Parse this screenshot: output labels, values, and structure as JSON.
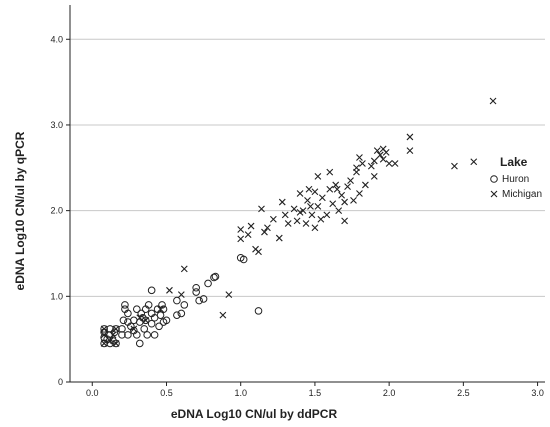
{
  "chart_data": {
    "type": "scatter",
    "title": "",
    "xlabel": "eDNA Log10 CN/ul by ddPCR",
    "ylabel": "eDNA Log10 CN/ul by qPCR",
    "xlim": [
      -0.15,
      3.05
    ],
    "ylim": [
      0,
      4.4
    ],
    "x_ticks": [
      "0.0",
      "0.5",
      "1.0",
      "1.5",
      "2.0",
      "2.5",
      "3.0"
    ],
    "y_ticks": [
      "0",
      "1.0",
      "2.0",
      "3.0",
      "4.0"
    ],
    "y_tick_values": [
      0,
      1,
      2,
      3,
      4
    ],
    "x_tick_values": [
      0,
      0.5,
      1,
      1.5,
      2,
      2.5,
      3
    ],
    "grid": "horizontal",
    "legend_position": "right",
    "legend_title": "Lake",
    "colors": {
      "marker": "#222222",
      "grid": "#c8c8c8",
      "axis": "#222222"
    },
    "series": [
      {
        "name": "Huron",
        "marker": "circle",
        "points": [
          [
            0.08,
            0.45
          ],
          [
            0.08,
            0.52
          ],
          [
            0.08,
            0.58
          ],
          [
            0.08,
            0.62
          ],
          [
            0.1,
            0.5
          ],
          [
            0.12,
            0.45
          ],
          [
            0.12,
            0.55
          ],
          [
            0.12,
            0.62
          ],
          [
            0.14,
            0.48
          ],
          [
            0.15,
            0.58
          ],
          [
            0.16,
            0.45
          ],
          [
            0.16,
            0.62
          ],
          [
            0.2,
            0.55
          ],
          [
            0.2,
            0.62
          ],
          [
            0.21,
            0.72
          ],
          [
            0.22,
            0.85
          ],
          [
            0.22,
            0.9
          ],
          [
            0.24,
            0.7
          ],
          [
            0.24,
            0.8
          ],
          [
            0.24,
            0.55
          ],
          [
            0.26,
            0.65
          ],
          [
            0.28,
            0.6
          ],
          [
            0.28,
            0.72
          ],
          [
            0.3,
            0.55
          ],
          [
            0.3,
            0.85
          ],
          [
            0.32,
            0.7
          ],
          [
            0.32,
            0.45
          ],
          [
            0.33,
            0.8
          ],
          [
            0.34,
            0.75
          ],
          [
            0.35,
            0.62
          ],
          [
            0.36,
            0.85
          ],
          [
            0.36,
            0.72
          ],
          [
            0.37,
            0.55
          ],
          [
            0.38,
            0.9
          ],
          [
            0.4,
            1.07
          ],
          [
            0.4,
            0.8
          ],
          [
            0.4,
            0.68
          ],
          [
            0.42,
            0.75
          ],
          [
            0.42,
            0.55
          ],
          [
            0.44,
            0.85
          ],
          [
            0.45,
            0.65
          ],
          [
            0.46,
            0.78
          ],
          [
            0.47,
            0.9
          ],
          [
            0.48,
            0.7
          ],
          [
            0.48,
            0.85
          ],
          [
            0.5,
            0.72
          ],
          [
            0.57,
            0.78
          ],
          [
            0.57,
            0.95
          ],
          [
            0.6,
            0.8
          ],
          [
            0.62,
            0.9
          ],
          [
            0.7,
            1.05
          ],
          [
            0.7,
            1.1
          ],
          [
            0.72,
            0.95
          ],
          [
            0.75,
            0.97
          ],
          [
            0.78,
            1.15
          ],
          [
            0.82,
            1.22
          ],
          [
            0.83,
            1.23
          ],
          [
            1.0,
            1.45
          ],
          [
            1.02,
            1.43
          ],
          [
            1.12,
            0.83
          ]
        ]
      },
      {
        "name": "Michigan",
        "marker": "x",
        "points": [
          [
            0.08,
            0.45
          ],
          [
            0.08,
            0.55
          ],
          [
            0.08,
            0.62
          ],
          [
            0.12,
            0.48
          ],
          [
            0.14,
            0.55
          ],
          [
            0.16,
            0.62
          ],
          [
            0.16,
            0.45
          ],
          [
            0.28,
            0.62
          ],
          [
            0.32,
            0.75
          ],
          [
            0.36,
            0.72
          ],
          [
            0.46,
            0.85
          ],
          [
            0.52,
            1.07
          ],
          [
            0.62,
            1.32
          ],
          [
            0.6,
            1.02
          ],
          [
            0.88,
            0.78
          ],
          [
            0.92,
            1.02
          ],
          [
            1.0,
            1.67
          ],
          [
            1.0,
            1.78
          ],
          [
            1.05,
            1.72
          ],
          [
            1.07,
            1.82
          ],
          [
            1.1,
            1.55
          ],
          [
            1.12,
            1.52
          ],
          [
            1.14,
            2.02
          ],
          [
            1.16,
            1.75
          ],
          [
            1.18,
            1.8
          ],
          [
            1.22,
            1.9
          ],
          [
            1.26,
            1.68
          ],
          [
            1.28,
            2.1
          ],
          [
            1.3,
            1.95
          ],
          [
            1.32,
            1.85
          ],
          [
            1.36,
            2.02
          ],
          [
            1.38,
            1.88
          ],
          [
            1.4,
            1.98
          ],
          [
            1.4,
            2.2
          ],
          [
            1.42,
            2.0
          ],
          [
            1.44,
            1.85
          ],
          [
            1.45,
            2.12
          ],
          [
            1.46,
            2.25
          ],
          [
            1.47,
            2.05
          ],
          [
            1.48,
            1.95
          ],
          [
            1.5,
            1.8
          ],
          [
            1.5,
            2.22
          ],
          [
            1.52,
            2.05
          ],
          [
            1.52,
            2.4
          ],
          [
            1.54,
            1.9
          ],
          [
            1.55,
            2.15
          ],
          [
            1.58,
            1.95
          ],
          [
            1.6,
            2.25
          ],
          [
            1.6,
            2.45
          ],
          [
            1.62,
            2.08
          ],
          [
            1.64,
            2.3
          ],
          [
            1.65,
            2.25
          ],
          [
            1.66,
            2.0
          ],
          [
            1.68,
            2.18
          ],
          [
            1.7,
            1.88
          ],
          [
            1.7,
            2.1
          ],
          [
            1.72,
            2.28
          ],
          [
            1.74,
            2.35
          ],
          [
            1.76,
            2.12
          ],
          [
            1.78,
            2.5
          ],
          [
            1.78,
            2.45
          ],
          [
            1.8,
            2.62
          ],
          [
            1.8,
            2.2
          ],
          [
            1.82,
            2.55
          ],
          [
            1.84,
            2.3
          ],
          [
            1.88,
            2.52
          ],
          [
            1.9,
            2.4
          ],
          [
            1.9,
            2.58
          ],
          [
            1.92,
            2.7
          ],
          [
            1.94,
            2.65
          ],
          [
            1.96,
            2.6
          ],
          [
            1.96,
            2.72
          ],
          [
            1.98,
            2.68
          ],
          [
            2.0,
            2.55
          ],
          [
            2.04,
            2.55
          ],
          [
            2.14,
            2.86
          ],
          [
            2.14,
            2.7
          ],
          [
            2.44,
            2.52
          ],
          [
            2.57,
            2.57
          ],
          [
            2.7,
            3.28
          ]
        ]
      }
    ]
  }
}
